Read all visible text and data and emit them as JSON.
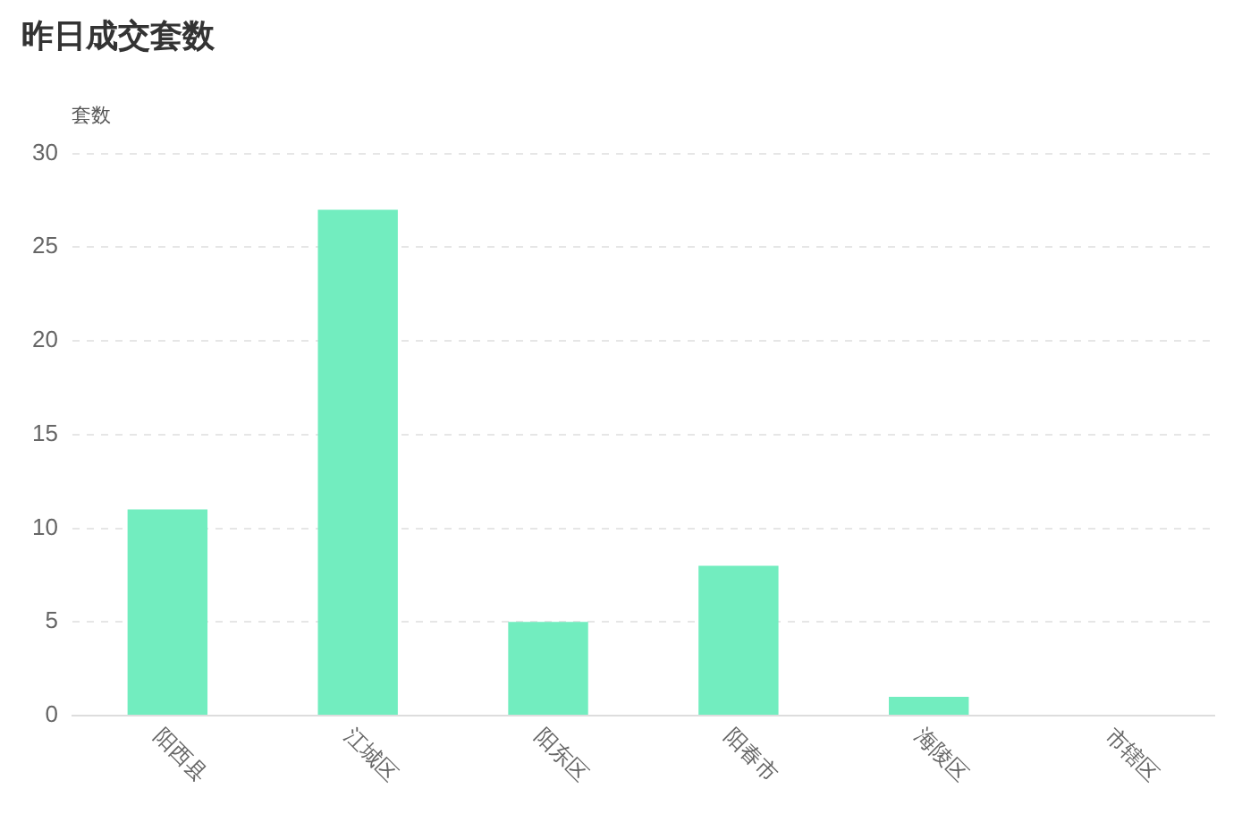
{
  "chart_data": {
    "type": "bar",
    "title": "昨日成交套数",
    "ylabel": "套数",
    "categories": [
      "阳西县",
      "江城区",
      "阳东区",
      "阳春市",
      "海陵区",
      "市辖区"
    ],
    "values": [
      11,
      27,
      5,
      8,
      1,
      0
    ],
    "color": "#72edbf",
    "ylim": [
      0,
      30
    ],
    "yticks": [
      0,
      5,
      10,
      15,
      20,
      25,
      30
    ],
    "grid": "y"
  }
}
